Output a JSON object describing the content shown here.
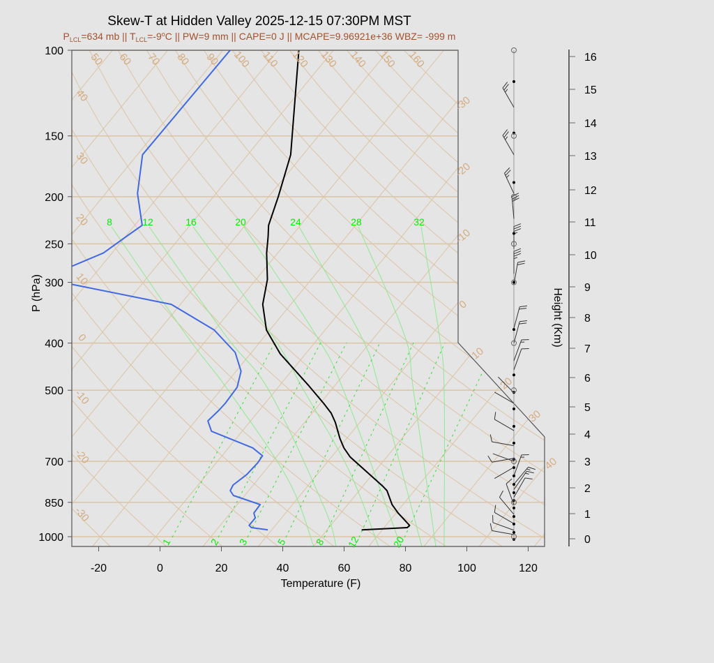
{
  "chart_data": {
    "type": "line",
    "title": "Skew-T at Hidden Valley 2025-12-15 07:30PM MST",
    "subtitle": {
      "p_symbol": "P",
      "p_sub": "LCL",
      "p_text": "=634 mb || ",
      "t_symbol": "T",
      "t_sub": "LCL",
      "t_text": "=-9",
      "t_deg": "o",
      "rest": "C || PW=9 mm || CAPE=0 J || MCAPE=9.96921e+36 WBZ= -999 m"
    },
    "xlabel": "Temperature (F)",
    "ylabel": "P (hPa)",
    "y2label": "Height (Km)",
    "x_ticks": [
      "-20",
      "0",
      "20",
      "40",
      "60",
      "80",
      "100",
      "120"
    ],
    "xlim": [
      -29,
      125
    ],
    "y_ticks": [
      "100",
      "150",
      "200",
      "250",
      "300",
      "400",
      "500",
      "700",
      "850",
      "1000"
    ],
    "ylim": [
      1050,
      100
    ],
    "y_scale": "log",
    "skewed": true,
    "y2_ticks": [
      "0",
      "1",
      "2",
      "3",
      "4",
      "5",
      "6",
      "7",
      "8",
      "9",
      "10",
      "11",
      "12",
      "13",
      "14",
      "15",
      "16"
    ],
    "grid": true,
    "colors": {
      "temperature": "#000000",
      "dewpoint": "#4169e1",
      "grid": "#dcc4a4",
      "moist": "#00ee00"
    },
    "isotherm_labels_c": {
      "upper_right": [
        "-30",
        "-20",
        "-10",
        "0"
      ],
      "lower_right": [
        "10",
        "20",
        "30",
        "40"
      ]
    },
    "dry_adiabat_labels": {
      "left": [
        "40",
        "30",
        "20",
        "10",
        "0",
        "-10",
        "-20",
        "-30"
      ],
      "top": [
        "50",
        "60",
        "70",
        "80",
        "90",
        "100",
        "110",
        "120",
        "130",
        "140",
        "150",
        "160"
      ]
    },
    "moist_adiabat_labels": [
      "8",
      "12",
      "16",
      "20",
      "24",
      "28",
      "32"
    ],
    "mixing_ratio_labels": [
      "1",
      "2",
      "3",
      "5",
      "8",
      "12",
      "20"
    ],
    "series": [
      {
        "color": "#000000",
        "points_p_tf": [
          [
            100,
            -80.8
          ],
          [
            164,
            -56.9
          ],
          [
            200,
            -50.3
          ],
          [
            229,
            -46.2
          ],
          [
            242,
            -43.4
          ],
          [
            261,
            -39.8
          ],
          [
            296,
            -32.8
          ],
          [
            333,
            -28.0
          ],
          [
            376,
            -20.3
          ],
          [
            421,
            -9.7
          ],
          [
            490,
            7.8
          ],
          [
            532,
            17.0
          ],
          [
            557,
            21.9
          ],
          [
            582,
            25.6
          ],
          [
            628,
            31.2
          ],
          [
            657,
            34.9
          ],
          [
            686,
            39.3
          ],
          [
            788,
            57.4
          ],
          [
            804,
            59.8
          ],
          [
            859,
            65.0
          ],
          [
            894,
            69.1
          ],
          [
            948,
            76.0
          ],
          [
            958,
            75.8
          ],
          [
            968,
            61.5
          ]
        ]
      },
      {
        "color": "#4169e1",
        "points_p_tf": [
          [
            100,
            -103.2
          ],
          [
            164,
            -105.2
          ],
          [
            197,
            -97.0
          ],
          [
            229,
            -87.4
          ],
          [
            242,
            -89.8
          ],
          [
            261,
            -93.0
          ],
          [
            278,
            -99.9
          ],
          [
            290,
            -108
          ],
          [
            303,
            -95.1
          ],
          [
            333,
            -57.8
          ],
          [
            376,
            -37.3
          ],
          [
            418,
            -24.8
          ],
          [
            457,
            -18.1
          ],
          [
            493,
            -15.3
          ],
          [
            532,
            -15.1
          ],
          [
            550,
            -15.4
          ],
          [
            578,
            -16.3
          ],
          [
            607,
            -12.5
          ],
          [
            657,
            5.2
          ],
          [
            682,
            10.4
          ],
          [
            705,
            10.6
          ],
          [
            745,
            10.0
          ],
          [
            783,
            8.2
          ],
          [
            804,
            8.7
          ],
          [
            823,
            11.0
          ],
          [
            859,
            22.0
          ],
          [
            894,
            22.1
          ],
          [
            915,
            23.8
          ],
          [
            948,
            23.7
          ],
          [
            958,
            25.0
          ],
          [
            968,
            30.9
          ]
        ]
      }
    ],
    "winds": [
      {
        "p": 131,
        "dir": 330,
        "spd": 25
      },
      {
        "p": 164,
        "dir": 330,
        "spd": 25
      },
      {
        "p": 197,
        "dir": 335,
        "spd": 25
      },
      {
        "p": 222,
        "dir": 355,
        "spd": 30
      },
      {
        "p": 256,
        "dir": 0,
        "spd": 35
      },
      {
        "p": 288,
        "dir": 0,
        "spd": 35
      },
      {
        "p": 303,
        "dir": 10,
        "spd": 20
      },
      {
        "p": 373,
        "dir": 15,
        "spd": 20
      },
      {
        "p": 400,
        "dir": 15,
        "spd": 20
      },
      {
        "p": 435,
        "dir": 20,
        "spd": 15
      },
      {
        "p": 454,
        "dir": 20,
        "spd": 10
      },
      {
        "p": 506,
        "dir": 315,
        "spd": 5
      },
      {
        "p": 532,
        "dir": 300,
        "spd": 5
      },
      {
        "p": 605,
        "dir": 300,
        "spd": 10
      },
      {
        "p": 650,
        "dir": 280,
        "spd": 10
      },
      {
        "p": 690,
        "dir": 260,
        "spd": 10
      },
      {
        "p": 700,
        "dir": 290,
        "spd": 5
      },
      {
        "p": 720,
        "dir": 240,
        "spd": 5
      },
      {
        "p": 750,
        "dir": 20,
        "spd": 15
      },
      {
        "p": 780,
        "dir": 40,
        "spd": 15
      },
      {
        "p": 800,
        "dir": 35,
        "spd": 15
      },
      {
        "p": 830,
        "dir": 30,
        "spd": 10
      },
      {
        "p": 860,
        "dir": 340,
        "spd": 10
      },
      {
        "p": 900,
        "dir": 320,
        "spd": 10
      },
      {
        "p": 940,
        "dir": 300,
        "spd": 10
      },
      {
        "p": 970,
        "dir": 290,
        "spd": 10
      },
      {
        "p": 990,
        "dir": 280,
        "spd": 10
      }
    ],
    "markers": {
      "filled_p": [
        116,
        148,
        187,
        238,
        300,
        375,
        465,
        505,
        546,
        593,
        642,
        693,
        721,
        750,
        781,
        812,
        842,
        873,
        909,
        942,
        980,
        1013
      ],
      "open_p": [
        100,
        150,
        200,
        250,
        300,
        400,
        500,
        700,
        850,
        1000
      ]
    }
  }
}
